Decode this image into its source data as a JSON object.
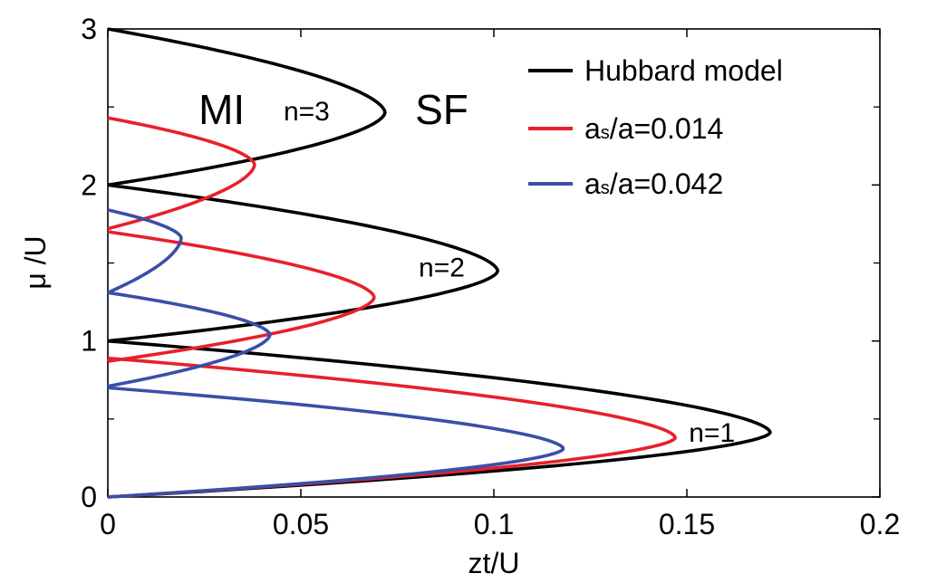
{
  "chart_data": {
    "type": "line",
    "xlabel": "zt/U",
    "ylabel": "μ /U",
    "xlim": [
      0,
      0.2
    ],
    "ylim": [
      0,
      3
    ],
    "xticks": [
      0,
      0.05,
      0.1,
      0.15,
      0.2
    ],
    "xtick_labels": [
      "0",
      "0.05",
      "0.1",
      "0.15",
      "0.2"
    ],
    "yticks": [
      0,
      1,
      2,
      3
    ],
    "ytick_labels": [
      "0",
      "1",
      "2",
      "3"
    ],
    "minor_yticks": [
      0.5,
      1.5,
      2.5
    ],
    "grid": false,
    "legend_position": "top-right",
    "series": [
      {
        "name": "Hubbard model",
        "color": "#000000",
        "lobes": [
          {
            "y_bottom": 0,
            "y_top": 1,
            "tip": [
              0.1716,
              0.414
            ]
          },
          {
            "y_bottom": 1,
            "y_top": 2,
            "tip": [
              0.101,
              1.449
            ]
          },
          {
            "y_bottom": 2,
            "y_top": 3,
            "tip": [
              0.0718,
              2.464
            ]
          }
        ]
      },
      {
        "name_main": "a",
        "name_sub": "s",
        "name_rest": "/a=0.014",
        "color": "#e8202a",
        "lobes": [
          {
            "y_bottom": 0,
            "y_top": 0.89,
            "tip": [
              0.147,
              0.38
            ]
          },
          {
            "y_bottom": 0.87,
            "y_top": 1.7,
            "tip": [
              0.069,
              1.28
            ]
          },
          {
            "y_bottom": 1.72,
            "y_top": 2.43,
            "tip": [
              0.038,
              2.13
            ]
          }
        ]
      },
      {
        "name_main": "a",
        "name_sub": "s",
        "name_rest": "/a=0.042",
        "color": "#3a4fa8",
        "lobes": [
          {
            "y_bottom": 0,
            "y_top": 0.7,
            "tip": [
              0.118,
              0.31
            ]
          },
          {
            "y_bottom": 0.71,
            "y_top": 1.31,
            "tip": [
              0.042,
              1.04
            ]
          },
          {
            "y_bottom": 1.31,
            "y_top": 1.84,
            "tip": [
              0.019,
              1.66
            ]
          }
        ]
      }
    ],
    "annotations": [
      {
        "text": "MI",
        "x": 0.0295,
        "y": 2.46,
        "size": "large"
      },
      {
        "text": "n=3",
        "x": 0.0515,
        "y": 2.46,
        "size": "small"
      },
      {
        "text": "SF",
        "x": 0.0865,
        "y": 2.46,
        "size": "large"
      },
      {
        "text": "n=2",
        "x": 0.0865,
        "y": 1.46,
        "size": "small"
      },
      {
        "text": "n=1",
        "x": 0.1565,
        "y": 0.4,
        "size": "small"
      }
    ]
  }
}
